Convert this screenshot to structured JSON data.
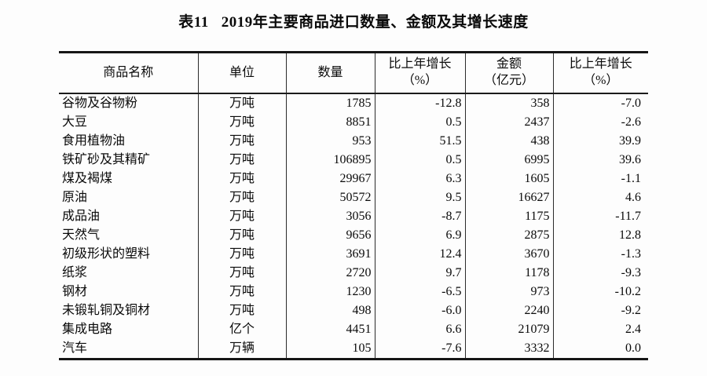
{
  "title": {
    "prefix": "表11",
    "text": "2019年主要商品进口数量、金额及其增长速度"
  },
  "table": {
    "columns": [
      {
        "label": "商品名称",
        "label2": ""
      },
      {
        "label": "单位",
        "label2": ""
      },
      {
        "label": "数量",
        "label2": ""
      },
      {
        "label": "比上年增长",
        "label2": "（%）"
      },
      {
        "label": "金额",
        "label2": "（亿元）"
      },
      {
        "label": "比上年增长",
        "label2": "（%）"
      }
    ],
    "rows": [
      {
        "cells": [
          "谷物及谷物粉",
          "万吨",
          "1785",
          "-12.8",
          "358",
          "-7.0"
        ]
      },
      {
        "cells": [
          "大豆",
          "万吨",
          "8851",
          "0.5",
          "2437",
          "-2.6"
        ]
      },
      {
        "cells": [
          "食用植物油",
          "万吨",
          "953",
          "51.5",
          "438",
          "39.9"
        ]
      },
      {
        "cells": [
          "铁矿砂及其精矿",
          "万吨",
          "106895",
          "0.5",
          "6995",
          "39.6"
        ]
      },
      {
        "cells": [
          "煤及褐煤",
          "万吨",
          "29967",
          "6.3",
          "1605",
          "-1.1"
        ]
      },
      {
        "cells": [
          "原油",
          "万吨",
          "50572",
          "9.5",
          "16627",
          "4.6"
        ]
      },
      {
        "cells": [
          "成品油",
          "万吨",
          "3056",
          "-8.7",
          "1175",
          "-11.7"
        ]
      },
      {
        "cells": [
          "天然气",
          "万吨",
          "9656",
          "6.9",
          "2875",
          "12.8"
        ]
      },
      {
        "cells": [
          "初级形状的塑料",
          "万吨",
          "3691",
          "12.4",
          "3670",
          "-1.3"
        ]
      },
      {
        "cells": [
          "纸浆",
          "万吨",
          "2720",
          "9.7",
          "1178",
          "-9.3"
        ]
      },
      {
        "cells": [
          "钢材",
          "万吨",
          "1230",
          "-6.5",
          "973",
          "-10.2"
        ]
      },
      {
        "cells": [
          "未锻轧铜及铜材",
          "万吨",
          "498",
          "-6.0",
          "2240",
          "-9.2"
        ]
      },
      {
        "cells": [
          "集成电路",
          "亿个",
          "4451",
          "6.6",
          "21079",
          "2.4"
        ]
      },
      {
        "cells": [
          "汽车",
          "万辆",
          "105",
          "-7.6",
          "3332",
          "0.0"
        ]
      }
    ]
  }
}
